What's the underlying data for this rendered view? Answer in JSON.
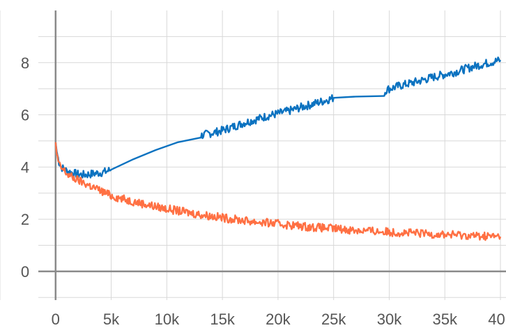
{
  "chart_data": {
    "type": "line",
    "title": "",
    "xlabel": "",
    "ylabel": "",
    "xlim": [
      -5000,
      40500
    ],
    "ylim": [
      -1.1,
      10
    ],
    "x_ticks": [
      0,
      5000,
      10000,
      15000,
      20000,
      25000,
      30000,
      35000,
      40000
    ],
    "x_tick_labels": [
      "0",
      "5k",
      "10k",
      "15k",
      "20k",
      "25k",
      "30k",
      "35k",
      "40k"
    ],
    "y_ticks": [
      0,
      2,
      4,
      6,
      8
    ],
    "y_tick_labels": [
      "0",
      "2",
      "4",
      "6",
      "8"
    ],
    "grid": true,
    "legend": "none",
    "series": [
      {
        "color": "#0b72c0",
        "x": [
          0,
          100,
          300,
          500,
          800,
          1000,
          1500,
          2000,
          2500,
          3000,
          3500,
          4000,
          4500,
          5000,
          7000,
          9000,
          11000,
          13000,
          14000,
          14500,
          15000,
          16000,
          17000,
          18000,
          19000,
          20000,
          21000,
          22000,
          23000,
          24000,
          25000,
          27000,
          29500,
          29700,
          30000,
          31000,
          32000,
          33000,
          34000,
          35000,
          36000,
          37000,
          38000,
          39000,
          40000
        ],
        "y": [
          4.95,
          4.6,
          4.2,
          4.0,
          3.9,
          3.85,
          3.78,
          3.72,
          3.7,
          3.72,
          3.75,
          3.78,
          3.82,
          3.9,
          4.3,
          4.65,
          4.95,
          5.2,
          5.3,
          5.35,
          5.4,
          5.55,
          5.7,
          5.82,
          5.95,
          6.05,
          6.15,
          6.28,
          6.4,
          6.52,
          6.65,
          6.7,
          6.75,
          6.95,
          7.0,
          7.12,
          7.22,
          7.33,
          7.45,
          7.55,
          7.65,
          7.78,
          7.9,
          8.0,
          8.1
        ]
      },
      {
        "color": "#ff7043",
        "x": [
          0,
          100,
          300,
          500,
          800,
          1000,
          1500,
          2000,
          2500,
          3000,
          3500,
          4000,
          4500,
          5000,
          6000,
          7000,
          8000,
          9000,
          10000,
          11000,
          12000,
          13000,
          14000,
          15000,
          16000,
          17000,
          18000,
          19000,
          20000,
          21000,
          22000,
          23000,
          24000,
          25000,
          26000,
          27000,
          28000,
          29000,
          30000,
          31000,
          32000,
          33000,
          34000,
          35000,
          36000,
          37000,
          38000,
          39000,
          40000
        ],
        "y": [
          4.95,
          4.5,
          4.1,
          3.95,
          3.85,
          3.75,
          3.6,
          3.5,
          3.4,
          3.3,
          3.2,
          3.1,
          3.0,
          2.9,
          2.78,
          2.68,
          2.58,
          2.48,
          2.4,
          2.32,
          2.25,
          2.18,
          2.12,
          2.06,
          2.0,
          1.95,
          1.9,
          1.86,
          1.82,
          1.78,
          1.74,
          1.7,
          1.67,
          1.64,
          1.61,
          1.58,
          1.56,
          1.53,
          1.51,
          1.49,
          1.47,
          1.45,
          1.43,
          1.41,
          1.4,
          1.38,
          1.36,
          1.35,
          1.33
        ]
      }
    ]
  }
}
